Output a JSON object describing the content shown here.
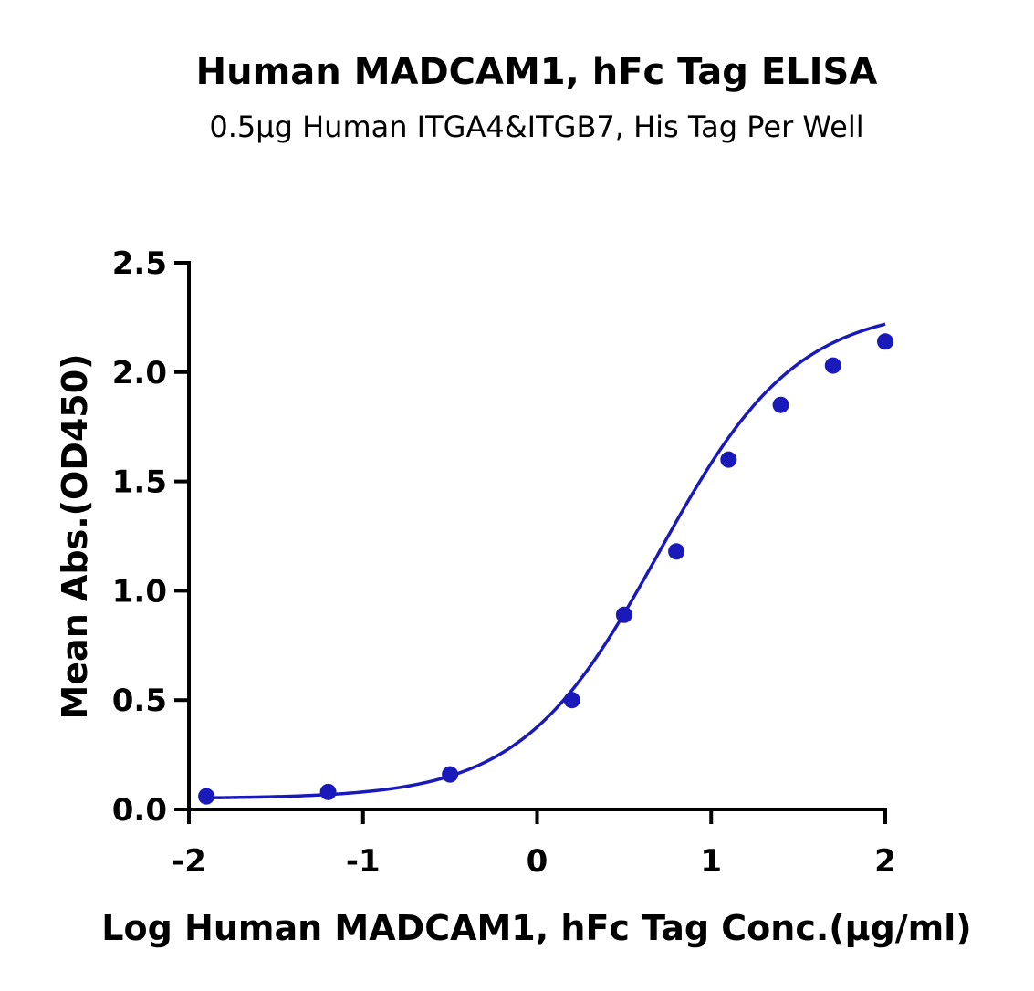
{
  "chart_data": {
    "type": "scatter",
    "title": "Human MADCAM1, hFc Tag ELISA",
    "subtitle": "0.5μg Human ITGA4&ITGB7, His Tag Per Well",
    "xlabel": "Log Human MADCAM1, hFc Tag Conc.(μg/ml)",
    "ylabel": "Mean Abs.(OD450)",
    "xlim": [
      -2,
      2
    ],
    "ylim": [
      0,
      2.5
    ],
    "xticks": [
      -2,
      -1,
      0,
      1,
      2
    ],
    "xtick_labels": [
      "-2",
      "-1",
      "0",
      "1",
      "2"
    ],
    "yticks": [
      0,
      0.5,
      1,
      1.5,
      2,
      2.5
    ],
    "ytick_labels": [
      "0.0",
      "0.5",
      "1.0",
      "1.5",
      "2.0",
      "2.5"
    ],
    "grid": false,
    "color": "#1a1aba",
    "series": [
      {
        "x": [
          -1.9,
          -1.2,
          -0.5,
          0.2,
          0.5,
          0.8,
          1.1,
          1.4,
          1.7,
          2.0
        ],
        "y": [
          0.06,
          0.08,
          0.16,
          0.5,
          0.89,
          1.18,
          1.6,
          1.85,
          2.03,
          2.14
        ]
      }
    ],
    "fit_curve": {
      "type": "4PL",
      "bottom": 0.05,
      "top": 2.3,
      "log_ec50": 0.7,
      "hill_slope": 1.1
    }
  }
}
